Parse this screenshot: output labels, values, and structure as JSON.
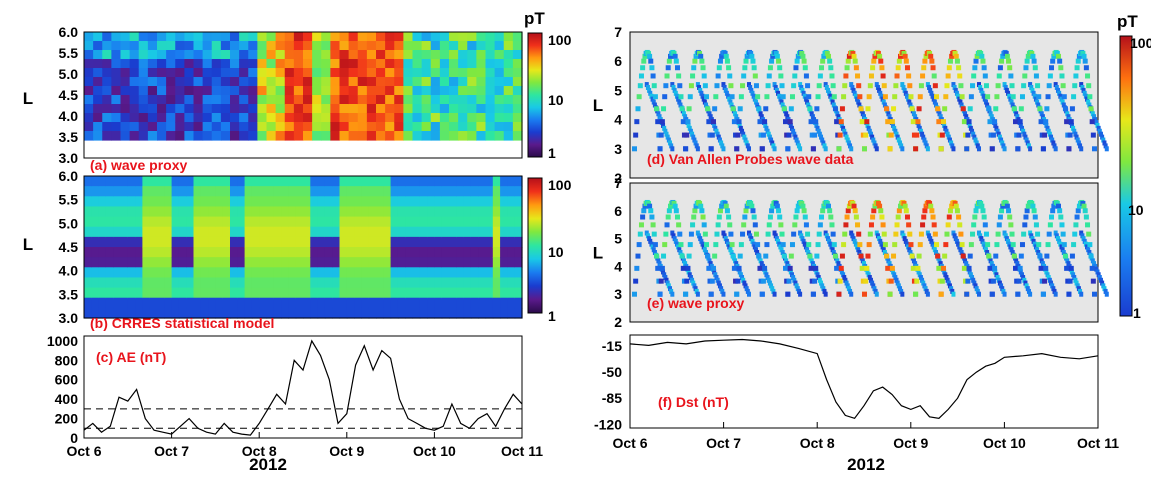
{
  "figure": {
    "left_year": "2012",
    "right_year": "2012"
  },
  "colorbar": {
    "unit": "pT",
    "ticks": [
      "100",
      "10",
      "1"
    ],
    "log_range": [
      1,
      100
    ],
    "colormap": [
      "#2a0b4a",
      "#5a1a8c",
      "#1a3ccf",
      "#1a7cf0",
      "#19c9e6",
      "#2ee6a0",
      "#7fe840",
      "#e7e81a",
      "#ff9a10",
      "#f0301a",
      "#b4101a"
    ]
  },
  "chart_data": [
    {
      "id": "a",
      "type": "heatmap",
      "panel_label": "(a) wave proxy",
      "ylabel": "L",
      "ylim": [
        3.0,
        6.0
      ],
      "yticks": [
        "6.0",
        "5.5",
        "5.0",
        "4.5",
        "4.0",
        "3.5",
        "3.0"
      ],
      "xticks": [
        "Oct 6",
        "Oct 7",
        "Oct 8",
        "Oct 9",
        "Oct 10",
        "Oct 11"
      ],
      "xlim": [
        "Oct 6",
        "Oct 11"
      ],
      "colorbar": "pT, log 1-100",
      "description_values": "Low (1-3 pT) Oct 6-8, strong (30-100 pT) Oct 8-9.5, moderate (5-20 pT) Oct 9.5-11"
    },
    {
      "id": "b",
      "type": "heatmap",
      "panel_label": "(b) CRRES statistical model",
      "ylabel": "L",
      "ylim": [
        3.0,
        6.0
      ],
      "yticks": [
        "6.0",
        "5.5",
        "5.0",
        "4.5",
        "4.0",
        "3.5",
        "3.0"
      ],
      "xticks": [
        "Oct 6",
        "Oct 7",
        "Oct 8",
        "Oct 9",
        "Oct 10",
        "Oct 11"
      ],
      "colorbar": "pT, log 1-100"
    },
    {
      "id": "c",
      "type": "line",
      "panel_label": "(c) AE (nT)",
      "ylim": [
        0,
        1050
      ],
      "yticks": [
        "1000",
        "800",
        "600",
        "400",
        "200",
        "0"
      ],
      "reference_lines": [
        100,
        300
      ],
      "x": [
        6.0,
        6.1,
        6.2,
        6.3,
        6.4,
        6.5,
        6.6,
        6.7,
        6.8,
        6.9,
        7.0,
        7.1,
        7.2,
        7.3,
        7.4,
        7.5,
        7.6,
        7.7,
        7.8,
        7.9,
        8.0,
        8.1,
        8.2,
        8.3,
        8.4,
        8.5,
        8.6,
        8.7,
        8.8,
        8.9,
        9.0,
        9.1,
        9.2,
        9.3,
        9.4,
        9.5,
        9.6,
        9.7,
        9.8,
        9.9,
        10.0,
        10.1,
        10.2,
        10.3,
        10.4,
        10.5,
        10.6,
        10.7,
        10.8,
        10.9,
        11.0
      ],
      "values": [
        80,
        150,
        60,
        120,
        420,
        380,
        500,
        200,
        80,
        60,
        40,
        120,
        200,
        100,
        60,
        40,
        150,
        60,
        40,
        30,
        150,
        300,
        450,
        350,
        800,
        700,
        1000,
        850,
        600,
        150,
        250,
        750,
        950,
        700,
        900,
        820,
        400,
        200,
        150,
        100,
        80,
        120,
        350,
        150,
        100,
        200,
        250,
        120,
        300,
        450,
        350
      ]
    },
    {
      "id": "d",
      "type": "scatter",
      "panel_label": "(d) Van Allen Probes wave data",
      "ylabel": "L",
      "ylim": [
        2,
        7
      ],
      "yticks": [
        "7",
        "6",
        "5",
        "4",
        "3",
        "2"
      ],
      "xticks": [
        "Oct 6",
        "Oct 7",
        "Oct 8",
        "Oct 9",
        "Oct 10",
        "Oct 11"
      ],
      "colorbar": "pT, log 1-100"
    },
    {
      "id": "e",
      "type": "scatter",
      "panel_label": "(e) wave proxy",
      "ylabel": "L",
      "ylim": [
        2,
        7
      ],
      "yticks": [
        "7",
        "6",
        "5",
        "4",
        "3",
        "2"
      ],
      "xticks": [
        "Oct 6",
        "Oct 7",
        "Oct 8",
        "Oct 9",
        "Oct 10",
        "Oct 11"
      ],
      "colorbar": "pT, log 1-100"
    },
    {
      "id": "f",
      "type": "line",
      "panel_label": "(f) Dst (nT)",
      "ylim": [
        -125,
        0
      ],
      "yticks": [
        "-15",
        "-50",
        "-85",
        "-120"
      ],
      "xticks": [
        "Oct 6",
        "Oct 7",
        "Oct 8",
        "Oct 9",
        "Oct 10",
        "Oct 11"
      ],
      "x": [
        6.0,
        6.2,
        6.4,
        6.6,
        6.8,
        7.0,
        7.2,
        7.4,
        7.6,
        7.8,
        8.0,
        8.1,
        8.2,
        8.3,
        8.4,
        8.5,
        8.6,
        8.7,
        8.8,
        8.9,
        9.0,
        9.1,
        9.2,
        9.3,
        9.4,
        9.5,
        9.6,
        9.7,
        9.8,
        9.9,
        10.0,
        10.2,
        10.4,
        10.6,
        10.8,
        11.0
      ],
      "values": [
        -12,
        -14,
        -10,
        -12,
        -8,
        -7,
        -6,
        -8,
        -12,
        -18,
        -25,
        -60,
        -90,
        -108,
        -112,
        -95,
        -75,
        -70,
        -80,
        -95,
        -100,
        -95,
        -110,
        -112,
        -100,
        -85,
        -60,
        -50,
        -42,
        -38,
        -30,
        -28,
        -25,
        -30,
        -32,
        -28
      ]
    }
  ]
}
